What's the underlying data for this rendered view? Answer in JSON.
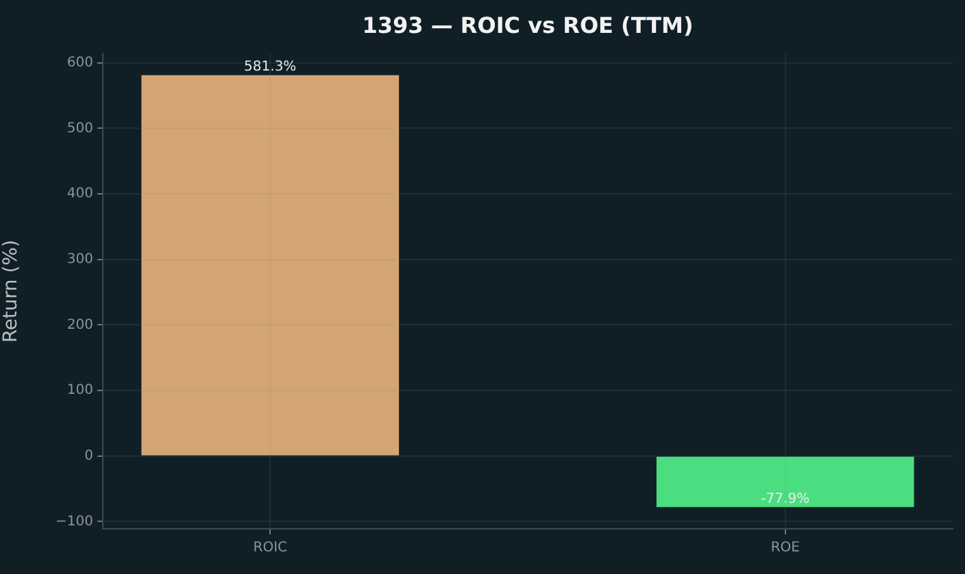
{
  "chart_data": {
    "type": "bar",
    "title": "1393 — ROIC vs ROE (TTM)",
    "ylabel": "Return (%)",
    "categories": [
      "ROIC",
      "ROE"
    ],
    "values": [
      581.3,
      -77.9
    ],
    "colors": [
      "#d4a574",
      "#4ade80"
    ],
    "value_labels": [
      "581.3%",
      "-77.9%"
    ],
    "ylim": [
      -111,
      614
    ],
    "yticks": [
      {
        "value": -100,
        "label": "−100"
      },
      0,
      100,
      200,
      300,
      400,
      500,
      600
    ],
    "grid": true
  }
}
